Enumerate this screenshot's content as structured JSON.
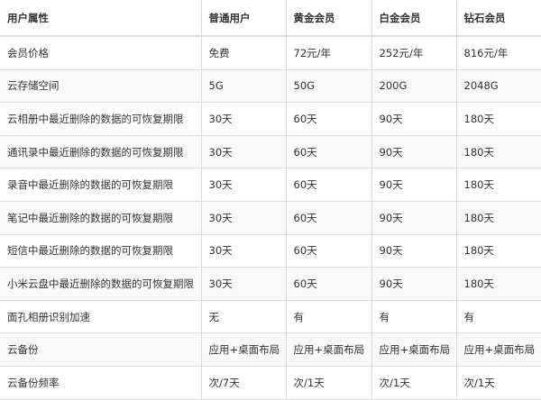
{
  "table": {
    "headers": [
      "用户属性",
      "普通用户",
      "黄金会员",
      "白金会员",
      "钻石会员"
    ],
    "rows": [
      [
        "会员价格",
        "免费",
        "72元/年",
        "252元/年",
        "816元/年"
      ],
      [
        "云存储空间",
        "5G",
        "50G",
        "200G",
        "2048G"
      ],
      [
        "云相册中最近删除的数据的可恢复期限",
        "30天",
        "60天",
        "90天",
        "180天"
      ],
      [
        "通讯录中最近删除的数据的可恢复期限",
        "30天",
        "60天",
        "90天",
        "180天"
      ],
      [
        "录音中最近删除的数据的可恢复期限",
        "30天",
        "60天",
        "90天",
        "180天"
      ],
      [
        "笔记中最近删除的数据的可恢复期限",
        "30天",
        "60天",
        "90天",
        "180天"
      ],
      [
        "短信中最近删除的数据的可恢复期限",
        "30天",
        "60天",
        "90天",
        "180天"
      ],
      [
        "小米云盘中最近删除的数据的可恢复期限",
        "30天",
        "60天",
        "90天",
        "180天"
      ],
      [
        "面孔相册识别加速",
        "无",
        "有",
        "有",
        "有"
      ],
      [
        "云备份",
        "应用+桌面布局",
        "应用+桌面布局",
        "应用+桌面布局",
        "应用+桌面布局"
      ],
      [
        "云备份频率",
        "次/7天",
        "次/1天",
        "次/1天",
        "次/1天"
      ]
    ]
  }
}
